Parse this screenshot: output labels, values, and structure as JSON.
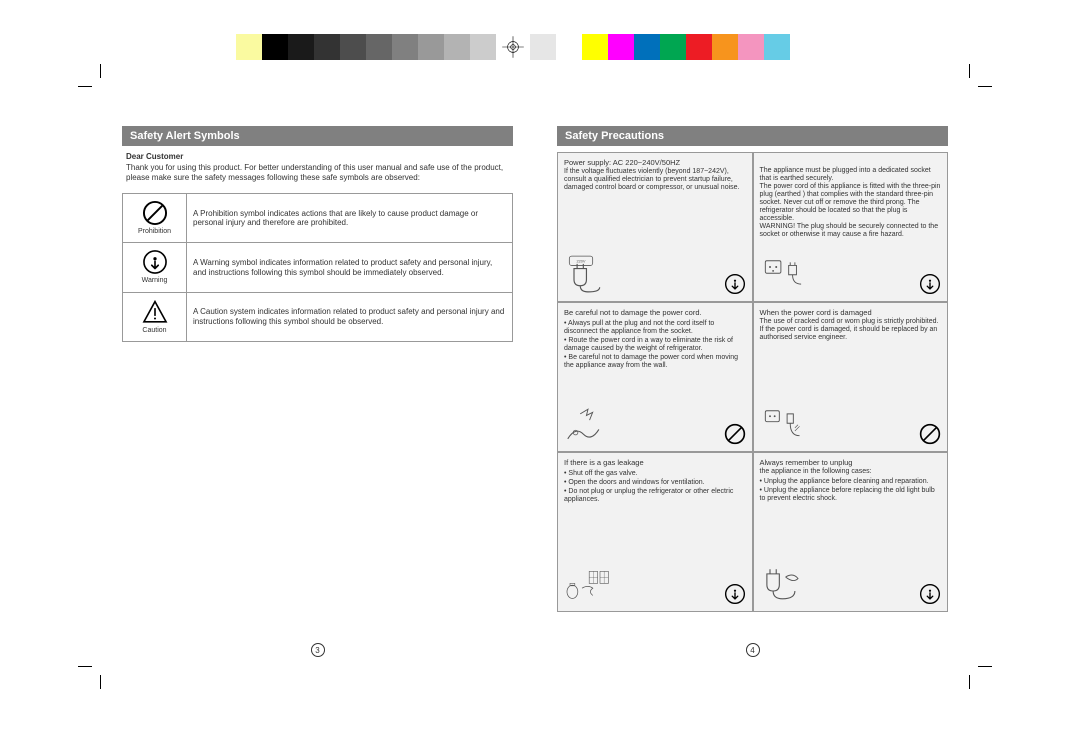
{
  "colorbar": [
    "#ffffff",
    "#fafaa0",
    "#000000",
    "#1a1a1a",
    "#333333",
    "#4d4d4d",
    "#666666",
    "#808080",
    "#999999",
    "#b3b3b3",
    "#cccccc",
    "#e6e6e6",
    "#ffffff",
    "#ffff00",
    "#ff00ff",
    "#0070bb",
    "#00a651",
    "#ed1c24",
    "#f7941d",
    "#f495bf",
    "#66cce6",
    "#ffffff"
  ],
  "left": {
    "header": "Safety Alert Symbols",
    "greeting": "Dear Customer",
    "intro": "Thank you for using this product. For better understanding of this user manual and safe use of the product, please make sure the safety messages following these safe symbols are observed:",
    "rows": [
      {
        "label": "Prohibition",
        "desc": "A Prohibition symbol indicates actions that are likely to cause product damage or personal injury and therefore are prohibited."
      },
      {
        "label": "Warning",
        "desc": "A Warning symbol indicates information related to product safety and personal injury, and instructions following this symbol should be immediately observed."
      },
      {
        "label": "Caution",
        "desc": "A Caution system indicates information related to product safety and personal injury and instructions following this symbol should be observed."
      }
    ],
    "page_num": "3"
  },
  "right": {
    "header": "Safety Precautions",
    "cells": [
      {
        "title": "Power supply: AC 220~240V/50HZ",
        "body": "If the voltage fluctuates violently (beyond 187~242V), consult a qualified electrician to prevent startup failure, damaged control board or compressor, or unusual noise.",
        "alert": "warning"
      },
      {
        "title": "",
        "body": "The appliance must be plugged into a dedicated socket that is earthed securely.\nThe power cord of this appliance is fitted with the three-pin plug (earthed ) that complies with the standard three-pin socket. Never cut off or remove the third prong. The refrigerator should be located so that the plug is accessible.\nWARNING! The plug should be securely connected to the socket or otherwise it may cause                            a fire hazard.",
        "alert": "warning"
      },
      {
        "title": "Be careful not to damage the power cord.",
        "bullets": [
          "Always pull at the plug and not the cord itself to disconnect the appliance from the socket.",
          "Route the power cord in a way to eliminate the risk of damage caused by the weight of refrigerator.",
          "Be careful not to damage the power cord when moving the appliance away from the wall."
        ],
        "alert": "prohibition"
      },
      {
        "title": "When the power cord is damaged",
        "body": "The use of cracked cord or worn plug is strictly prohibited. If the power cord is damaged, it should be replaced by an authorised service engineer.",
        "alert": "prohibition"
      },
      {
        "title": "If there is a gas leakage",
        "bullets": [
          "Shut off the gas valve.",
          "Open the doors and windows for ventilation.",
          "Do not plug or unplug the refrigerator or other electric appliances."
        ],
        "alert": "warning"
      },
      {
        "title": "Always remember to unplug",
        "lead": "the appliance in the following cases:",
        "bullets": [
          "Unplug the appliance before cleaning and reparation.",
          "Unplug the appliance before replacing the old light bulb to prevent electric shock."
        ],
        "alert": "warning"
      }
    ],
    "page_num": "4"
  }
}
